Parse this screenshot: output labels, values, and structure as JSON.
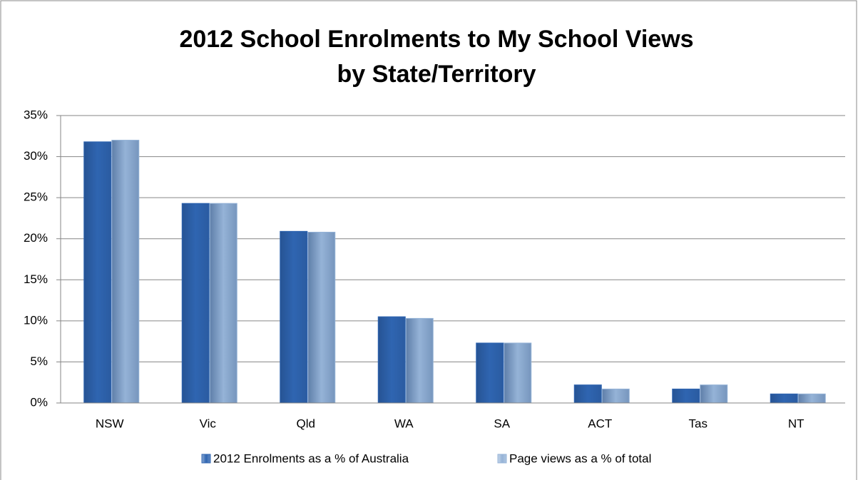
{
  "chart_data": {
    "type": "bar",
    "title": [
      "2012 School Enrolments to My School Views",
      "by State/Territory"
    ],
    "categories": [
      "NSW",
      "Vic",
      "Qld",
      "WA",
      "SA",
      "ACT",
      "Tas",
      "NT"
    ],
    "series": [
      {
        "name": "2012 Enrolments as a % of Australia",
        "color": "#2f65b1",
        "values": [
          31.8,
          24.3,
          20.9,
          10.5,
          7.3,
          2.2,
          1.7,
          1.1
        ]
      },
      {
        "name": "Page views as a % of total",
        "color": "#95b3d7",
        "values": [
          32.0,
          24.3,
          20.8,
          10.3,
          7.3,
          1.7,
          2.2,
          1.1
        ]
      }
    ],
    "ylim": [
      0,
      35
    ],
    "yticks": [
      {
        "value": 0,
        "label": "0%"
      },
      {
        "value": 5,
        "label": "5%"
      },
      {
        "value": 10,
        "label": "10%"
      },
      {
        "value": 15,
        "label": "15%"
      },
      {
        "value": 20,
        "label": "20%"
      },
      {
        "value": 25,
        "label": "25%"
      },
      {
        "value": 30,
        "label": "30%"
      },
      {
        "value": 35,
        "label": "35%"
      }
    ],
    "grid": true,
    "legend": "bottom"
  }
}
